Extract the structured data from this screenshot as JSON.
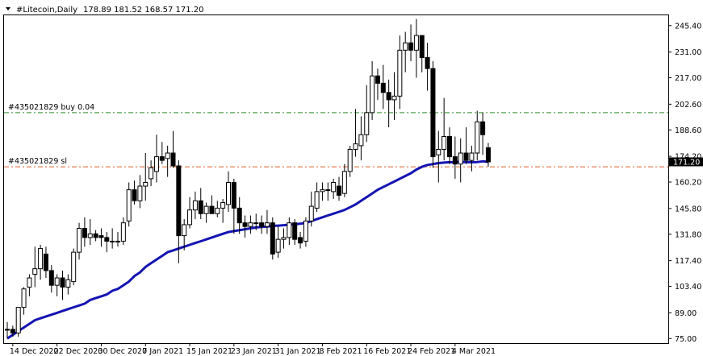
{
  "header": {
    "symbol_timeframe": "#Litecoin,Daily",
    "ohlc": "178.89 181.52 168.57 171.20"
  },
  "price_axis": {
    "ticks": [
      "245.40",
      "231.00",
      "217.00",
      "202.60",
      "188.60",
      "174.20",
      "160.20",
      "145.80",
      "131.80",
      "117.40",
      "103.40",
      "89.00",
      "75.00"
    ],
    "current_price_label": "171.20"
  },
  "time_axis": {
    "labels": [
      "14 Dec 2020",
      "22 Dec 2020",
      "30 Dec 2020",
      "7 Jan 2021",
      "15 Jan 2021",
      "23 Jan 2021",
      "31 Jan 2021",
      "8 Feb 2021",
      "16 Feb 2021",
      "24 Feb 2021",
      "4 Mar 2021"
    ]
  },
  "order_lines": [
    {
      "label": "#435021829 buy 0.04",
      "price": 198.0,
      "color": "#2e8b2e"
    },
    {
      "label": "#435021829 sl",
      "price": 168.5,
      "color": "#e0602a"
    }
  ],
  "colors": {
    "bull_fill": "#ffffff",
    "bear_fill": "#000000",
    "ma_line": "#1414b4",
    "axis": "#000000",
    "bg": "#ffffff"
  },
  "chart_data": {
    "type": "candlestick",
    "ylim": [
      72.5,
      251
    ],
    "start_date": "2020-12-13",
    "candles": [
      {
        "o": 80,
        "h": 84,
        "l": 75,
        "c": 80
      },
      {
        "o": 80,
        "h": 82,
        "l": 76,
        "c": 78
      },
      {
        "o": 78,
        "h": 92,
        "l": 76,
        "c": 92
      },
      {
        "o": 92,
        "h": 103,
        "l": 88,
        "c": 102
      },
      {
        "o": 103,
        "h": 110,
        "l": 98,
        "c": 108
      },
      {
        "o": 110,
        "h": 125,
        "l": 103,
        "c": 113
      },
      {
        "o": 113,
        "h": 126,
        "l": 107,
        "c": 124
      },
      {
        "o": 121,
        "h": 125,
        "l": 108,
        "c": 112
      },
      {
        "o": 112,
        "h": 115,
        "l": 100,
        "c": 104
      },
      {
        "o": 104,
        "h": 110,
        "l": 98,
        "c": 108
      },
      {
        "o": 108,
        "h": 112,
        "l": 96,
        "c": 103
      },
      {
        "o": 103,
        "h": 110,
        "l": 99,
        "c": 107
      },
      {
        "o": 106,
        "h": 124,
        "l": 104,
        "c": 122
      },
      {
        "o": 122,
        "h": 138,
        "l": 118,
        "c": 135
      },
      {
        "o": 135,
        "h": 141,
        "l": 125,
        "c": 130
      },
      {
        "o": 130,
        "h": 140,
        "l": 126,
        "c": 132
      },
      {
        "o": 132,
        "h": 134,
        "l": 128,
        "c": 130
      },
      {
        "o": 131,
        "h": 135,
        "l": 125,
        "c": 130
      },
      {
        "o": 130,
        "h": 133,
        "l": 122,
        "c": 128
      },
      {
        "o": 128,
        "h": 135,
        "l": 124,
        "c": 128
      },
      {
        "o": 128,
        "h": 133,
        "l": 125,
        "c": 128
      },
      {
        "o": 128,
        "h": 141,
        "l": 126,
        "c": 138
      },
      {
        "o": 139,
        "h": 160,
        "l": 136,
        "c": 156
      },
      {
        "o": 156,
        "h": 161,
        "l": 148,
        "c": 150
      },
      {
        "o": 150,
        "h": 164,
        "l": 146,
        "c": 158
      },
      {
        "o": 158,
        "h": 176,
        "l": 150,
        "c": 160
      },
      {
        "o": 162,
        "h": 172,
        "l": 158,
        "c": 168
      },
      {
        "o": 166,
        "h": 186,
        "l": 160,
        "c": 174
      },
      {
        "o": 174,
        "h": 182,
        "l": 170,
        "c": 172
      },
      {
        "o": 173,
        "h": 180,
        "l": 163,
        "c": 176
      },
      {
        "o": 176,
        "h": 188,
        "l": 168,
        "c": 169
      },
      {
        "o": 169,
        "h": 172,
        "l": 116,
        "c": 131
      },
      {
        "o": 131,
        "h": 140,
        "l": 123,
        "c": 137
      },
      {
        "o": 137,
        "h": 152,
        "l": 135,
        "c": 145
      },
      {
        "o": 145,
        "h": 155,
        "l": 140,
        "c": 150
      },
      {
        "o": 150,
        "h": 157,
        "l": 140,
        "c": 143
      },
      {
        "o": 143,
        "h": 149,
        "l": 138,
        "c": 147
      },
      {
        "o": 147,
        "h": 153,
        "l": 143,
        "c": 143
      },
      {
        "o": 143,
        "h": 150,
        "l": 141,
        "c": 146
      },
      {
        "o": 146,
        "h": 151,
        "l": 138,
        "c": 149
      },
      {
        "o": 148,
        "h": 166,
        "l": 144,
        "c": 160
      },
      {
        "o": 160,
        "h": 162,
        "l": 132,
        "c": 146
      },
      {
        "o": 146,
        "h": 152,
        "l": 132,
        "c": 138
      },
      {
        "o": 138,
        "h": 142,
        "l": 130,
        "c": 136
      },
      {
        "o": 136,
        "h": 142,
        "l": 132,
        "c": 138
      },
      {
        "o": 138,
        "h": 143,
        "l": 134,
        "c": 138
      },
      {
        "o": 138,
        "h": 142,
        "l": 132,
        "c": 136
      },
      {
        "o": 136,
        "h": 145,
        "l": 132,
        "c": 138
      },
      {
        "o": 138,
        "h": 141,
        "l": 118,
        "c": 121
      },
      {
        "o": 122,
        "h": 136,
        "l": 119,
        "c": 129
      },
      {
        "o": 129,
        "h": 135,
        "l": 124,
        "c": 130
      },
      {
        "o": 130,
        "h": 141,
        "l": 126,
        "c": 138
      },
      {
        "o": 138,
        "h": 140,
        "l": 126,
        "c": 129
      },
      {
        "o": 130,
        "h": 133,
        "l": 124,
        "c": 127
      },
      {
        "o": 128,
        "h": 141,
        "l": 125,
        "c": 139
      },
      {
        "o": 139,
        "h": 155,
        "l": 136,
        "c": 147
      },
      {
        "o": 146,
        "h": 160,
        "l": 144,
        "c": 155
      },
      {
        "o": 155,
        "h": 160,
        "l": 150,
        "c": 156
      },
      {
        "o": 156,
        "h": 160,
        "l": 150,
        "c": 156
      },
      {
        "o": 155,
        "h": 162,
        "l": 151,
        "c": 160
      },
      {
        "o": 158,
        "h": 163,
        "l": 150,
        "c": 153
      },
      {
        "o": 154,
        "h": 170,
        "l": 152,
        "c": 166
      },
      {
        "o": 166,
        "h": 180,
        "l": 163,
        "c": 178
      },
      {
        "o": 178,
        "h": 200,
        "l": 174,
        "c": 181
      },
      {
        "o": 180,
        "h": 196,
        "l": 172,
        "c": 186
      },
      {
        "o": 186,
        "h": 213,
        "l": 182,
        "c": 198
      },
      {
        "o": 198,
        "h": 226,
        "l": 194,
        "c": 218
      },
      {
        "o": 218,
        "h": 222,
        "l": 205,
        "c": 214
      },
      {
        "o": 214,
        "h": 224,
        "l": 200,
        "c": 209
      },
      {
        "o": 209,
        "h": 216,
        "l": 190,
        "c": 205
      },
      {
        "o": 205,
        "h": 220,
        "l": 194,
        "c": 207
      },
      {
        "o": 207,
        "h": 240,
        "l": 200,
        "c": 232
      },
      {
        "o": 232,
        "h": 242,
        "l": 220,
        "c": 236
      },
      {
        "o": 236,
        "h": 246,
        "l": 226,
        "c": 232
      },
      {
        "o": 232,
        "h": 249,
        "l": 217,
        "c": 240
      },
      {
        "o": 240,
        "h": 240,
        "l": 220,
        "c": 228
      },
      {
        "o": 228,
        "h": 236,
        "l": 210,
        "c": 222
      },
      {
        "o": 222,
        "h": 226,
        "l": 168,
        "c": 174
      },
      {
        "o": 175,
        "h": 188,
        "l": 160,
        "c": 178
      },
      {
        "o": 178,
        "h": 206,
        "l": 172,
        "c": 185
      },
      {
        "o": 185,
        "h": 190,
        "l": 170,
        "c": 174
      },
      {
        "o": 174,
        "h": 185,
        "l": 162,
        "c": 170
      },
      {
        "o": 170,
        "h": 184,
        "l": 160,
        "c": 176
      },
      {
        "o": 176,
        "h": 190,
        "l": 170,
        "c": 172
      },
      {
        "o": 172,
        "h": 180,
        "l": 166,
        "c": 176
      },
      {
        "o": 176,
        "h": 199,
        "l": 172,
        "c": 193
      },
      {
        "o": 193,
        "h": 198,
        "l": 175,
        "c": 186
      },
      {
        "o": 178.89,
        "h": 181.52,
        "l": 168.57,
        "c": 171.2
      }
    ],
    "moving_average": [
      75,
      77,
      79,
      81,
      83,
      85,
      86,
      87,
      88,
      89,
      90,
      91,
      92,
      93,
      94,
      96,
      97,
      98,
      99,
      101,
      102,
      104,
      106,
      109,
      111,
      114,
      116,
      118,
      120,
      122,
      123,
      124,
      125,
      126,
      127,
      128,
      129,
      130,
      131,
      132,
      133,
      133.5,
      134,
      134.5,
      135,
      135.5,
      135.8,
      136,
      136.3,
      136.5,
      136.7,
      137,
      137.2,
      137.5,
      138,
      139,
      140,
      141,
      142,
      143,
      144,
      145,
      146.5,
      148,
      150,
      152,
      154,
      156,
      157.5,
      159,
      160.5,
      162,
      163.5,
      165,
      167,
      168.5,
      169.5,
      170,
      170.5,
      170.8,
      171,
      171,
      171.2,
      171,
      171,
      171.1,
      171.5,
      171.2
    ]
  }
}
